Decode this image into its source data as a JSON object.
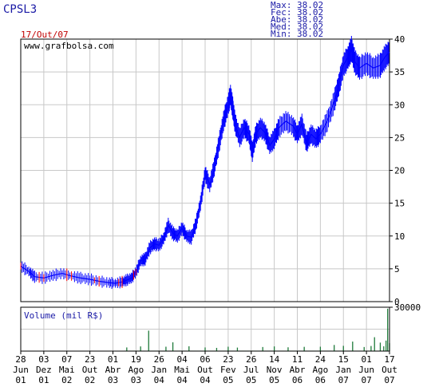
{
  "header": {
    "ticker": "CPSL3",
    "date": "17/Out/07",
    "stats": [
      {
        "label": "Max:",
        "value": "38.02"
      },
      {
        "label": "Fec:",
        "value": "38.02"
      },
      {
        "label": "Abe:",
        "value": "38.02"
      },
      {
        "label": "Med:",
        "value": "38.02"
      },
      {
        "label": "Min:",
        "value": "38.02"
      }
    ]
  },
  "watermark": "www.grafbolsa.com",
  "volume_label": "Volume (mil R$)",
  "colors": {
    "price_line": "#0000ff",
    "volume_bars": "#1f7a3a",
    "grid": "#c8c8c8",
    "frame": "#000000",
    "down_marks": "#ff0000"
  },
  "chart_data": [
    {
      "type": "line",
      "title": "CPSL3",
      "ylim": [
        0,
        40
      ],
      "y_ticks": [
        0,
        5,
        10,
        15,
        20,
        25,
        30,
        35,
        40
      ],
      "grid": true,
      "x_ticks": [
        {
          "day": "28",
          "month": "Jun",
          "year": "01"
        },
        {
          "day": "03",
          "month": "Dez",
          "year": "01"
        },
        {
          "day": "07",
          "month": "Mai",
          "year": "02"
        },
        {
          "day": "23",
          "month": "Out",
          "year": "02"
        },
        {
          "day": "01",
          "month": "Abr",
          "year": "03"
        },
        {
          "day": "19",
          "month": "Ago",
          "year": "03"
        },
        {
          "day": "26",
          "month": "Jan",
          "year": "04"
        },
        {
          "day": "04",
          "month": "Mai",
          "year": "04"
        },
        {
          "day": "06",
          "month": "Out",
          "year": "04"
        },
        {
          "day": "23",
          "month": "Fev",
          "year": "05"
        },
        {
          "day": "26",
          "month": "Jul",
          "year": "05"
        },
        {
          "day": "14",
          "month": "Nov",
          "year": "05"
        },
        {
          "day": "11",
          "month": "Abr",
          "year": "06"
        },
        {
          "day": "24",
          "month": "Ago",
          "year": "06"
        },
        {
          "day": "15",
          "month": "Jan",
          "year": "07"
        },
        {
          "day": "01",
          "month": "Jun",
          "year": "07"
        },
        {
          "day": "17",
          "month": "Out",
          "year": "07"
        }
      ],
      "series": [
        {
          "values": [
            [
              0,
              5.4
            ],
            [
              0.35,
              4.6
            ],
            [
              0.6,
              3.8
            ],
            [
              1.0,
              3.6
            ],
            [
              1.4,
              4.0
            ],
            [
              1.8,
              4.3
            ],
            [
              2.2,
              3.9
            ],
            [
              2.6,
              3.6
            ],
            [
              3.0,
              3.4
            ],
            [
              3.4,
              3.1
            ],
            [
              3.8,
              2.9
            ],
            [
              4.1,
              2.8
            ],
            [
              4.4,
              3.0
            ],
            [
              4.6,
              3.3
            ],
            [
              4.8,
              3.6
            ],
            [
              5.0,
              4.5
            ],
            [
              5.2,
              6.2
            ],
            [
              5.4,
              6.5
            ],
            [
              5.6,
              8.2
            ],
            [
              5.8,
              8.8
            ],
            [
              6.0,
              8.6
            ],
            [
              6.2,
              9.6
            ],
            [
              6.4,
              11.6
            ],
            [
              6.6,
              10.4
            ],
            [
              6.8,
              10.0
            ],
            [
              7.0,
              11.2
            ],
            [
              7.2,
              10.0
            ],
            [
              7.4,
              9.8
            ],
            [
              7.6,
              11.8
            ],
            [
              7.8,
              15.0
            ],
            [
              8.0,
              19.5
            ],
            [
              8.2,
              17.8
            ],
            [
              8.4,
              20.5
            ],
            [
              8.6,
              24.0
            ],
            [
              8.8,
              27.5
            ],
            [
              9.0,
              30.0
            ],
            [
              9.1,
              31.5
            ],
            [
              9.2,
              29.5
            ],
            [
              9.3,
              27.2
            ],
            [
              9.5,
              25.0
            ],
            [
              9.7,
              26.5
            ],
            [
              9.9,
              25.5
            ],
            [
              10.05,
              22.8
            ],
            [
              10.2,
              25.5
            ],
            [
              10.4,
              26.5
            ],
            [
              10.6,
              25.8
            ],
            [
              10.8,
              23.8
            ],
            [
              11.0,
              24.8
            ],
            [
              11.2,
              26.5
            ],
            [
              11.5,
              27.5
            ],
            [
              11.8,
              26.8
            ],
            [
              12.0,
              25.5
            ],
            [
              12.2,
              27.0
            ],
            [
              12.4,
              24.2
            ],
            [
              12.6,
              25.5
            ],
            [
              12.8,
              24.8
            ],
            [
              13.0,
              25.5
            ],
            [
              13.3,
              27.5
            ],
            [
              13.6,
              30.5
            ],
            [
              13.8,
              33.0
            ],
            [
              14.0,
              36.0
            ],
            [
              14.2,
              37.2
            ],
            [
              14.35,
              38.5
            ],
            [
              14.5,
              36.5
            ],
            [
              14.7,
              35.6
            ],
            [
              15.0,
              36.3
            ],
            [
              15.3,
              35.6
            ],
            [
              15.6,
              36.0
            ],
            [
              15.8,
              37.2
            ],
            [
              16.0,
              38.02
            ]
          ]
        }
      ]
    },
    {
      "type": "bar",
      "title": "Volume (mil R$)",
      "ylim": [
        0,
        30000
      ],
      "y_ticks": [
        30000
      ],
      "baseline": 500,
      "spikes": [
        [
          4.6,
          2500
        ],
        [
          5.2,
          3200
        ],
        [
          5.55,
          14000
        ],
        [
          6.3,
          3000
        ],
        [
          6.6,
          6000
        ],
        [
          7.3,
          3300
        ],
        [
          8.0,
          2500
        ],
        [
          8.5,
          2200
        ],
        [
          9.0,
          3000
        ],
        [
          9.4,
          2400
        ],
        [
          10.5,
          2800
        ],
        [
          11.0,
          3200
        ],
        [
          11.6,
          2600
        ],
        [
          12.3,
          2900
        ],
        [
          13.0,
          3000
        ],
        [
          13.6,
          4200
        ],
        [
          14.0,
          3600
        ],
        [
          14.4,
          6500
        ],
        [
          14.9,
          2800
        ],
        [
          15.2,
          3500
        ],
        [
          15.35,
          9500
        ],
        [
          15.6,
          5800
        ],
        [
          15.75,
          3300
        ],
        [
          15.85,
          7200
        ],
        [
          15.92,
          29000
        ],
        [
          16.0,
          5400
        ]
      ]
    }
  ]
}
